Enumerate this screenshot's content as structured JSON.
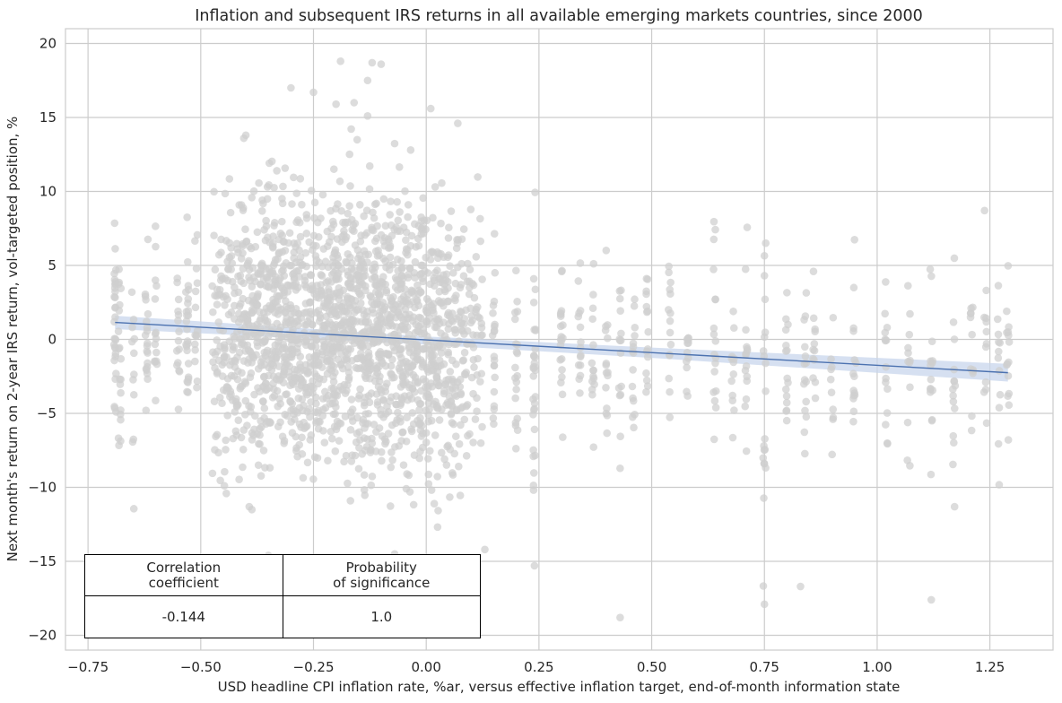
{
  "chart_data": {
    "type": "scatter",
    "title": "Inflation and subsequent IRS returns in all available emerging markets countries, since 2000",
    "xlabel": "USD headline CPI inflation rate, %ar, versus effective inflation target, end-of-month information state",
    "ylabel": "Next month's return on 2-year IRS return, vol-targeted position, %",
    "xlim": [
      -0.8,
      1.39
    ],
    "ylim": [
      -21,
      21
    ],
    "x_ticks": [
      -0.75,
      -0.5,
      -0.25,
      0.0,
      0.25,
      0.5,
      0.75,
      1.0,
      1.25
    ],
    "x_tick_labels": [
      "−0.75",
      "−0.50",
      "−0.25",
      "0.00",
      "0.25",
      "0.50",
      "0.75",
      "1.00",
      "1.25"
    ],
    "y_ticks": [
      -20,
      -15,
      -10,
      -5,
      0,
      5,
      10,
      15,
      20
    ],
    "y_tick_labels": [
      "−20",
      "−15",
      "−10",
      "−5",
      "0",
      "5",
      "10",
      "15",
      "20"
    ],
    "grid": true,
    "regression_line": {
      "x": [
        -0.69,
        1.29
      ],
      "y": [
        1.15,
        -2.25
      ]
    },
    "confidence_band": {
      "x": [
        -0.69,
        0.0,
        0.5,
        1.29
      ],
      "lower": [
        0.7,
        -0.35,
        -1.25,
        -2.85
      ],
      "upper": [
        1.6,
        0.2,
        -0.55,
        -1.65
      ]
    },
    "colors": {
      "points": "#cfcfcf",
      "line": "#4c72b0",
      "band": "#c8d6ec",
      "grid": "#cccccc",
      "axis": "#cccccc"
    },
    "points_approximate": true,
    "point_clusters": [
      {
        "x": -0.69,
        "center": 0.5,
        "spread": 3.2,
        "n": 30
      },
      {
        "x": -0.68,
        "center": -1.5,
        "spread": 3.5,
        "n": 20
      },
      {
        "x": -0.65,
        "center": -2.5,
        "spread": 4.0,
        "n": 12
      },
      {
        "x": -0.62,
        "center": 1.0,
        "spread": 2.5,
        "n": 20
      },
      {
        "x": -0.6,
        "center": 0.0,
        "spread": 3.5,
        "n": 15
      },
      {
        "x": -0.55,
        "center": 0.5,
        "spread": 2.5,
        "n": 15
      },
      {
        "x": -0.53,
        "center": 0.0,
        "spread": 3.5,
        "n": 25
      },
      {
        "x": -0.51,
        "center": 2.0,
        "spread": 3.0,
        "n": 15
      },
      {
        "x": -0.46,
        "center": 0.5,
        "spread": 4.5,
        "n": 55
      },
      {
        "x": -0.43,
        "center": 0.5,
        "spread": 4.8,
        "n": 70
      },
      {
        "x": -0.4,
        "center": 0.8,
        "spread": 4.8,
        "n": 90
      },
      {
        "x": -0.37,
        "center": 0.5,
        "spread": 4.5,
        "n": 100
      },
      {
        "x": -0.34,
        "center": 0.8,
        "spread": 4.5,
        "n": 110
      },
      {
        "x": -0.31,
        "center": 1.0,
        "spread": 4.2,
        "n": 110
      },
      {
        "x": -0.28,
        "center": 0.5,
        "spread": 4.2,
        "n": 110
      },
      {
        "x": -0.25,
        "center": 0.5,
        "spread": 4.2,
        "n": 100
      },
      {
        "x": -0.22,
        "center": 1.0,
        "spread": 4.5,
        "n": 110
      },
      {
        "x": -0.19,
        "center": 1.2,
        "spread": 4.5,
        "n": 120
      },
      {
        "x": -0.16,
        "center": 1.0,
        "spread": 4.5,
        "n": 120
      },
      {
        "x": -0.13,
        "center": 0.8,
        "spread": 4.5,
        "n": 120
      },
      {
        "x": -0.1,
        "center": 0.5,
        "spread": 4.5,
        "n": 120
      },
      {
        "x": -0.07,
        "center": 0.5,
        "spread": 4.5,
        "n": 110
      },
      {
        "x": -0.04,
        "center": 0.0,
        "spread": 4.5,
        "n": 110
      },
      {
        "x": -0.01,
        "center": 0.0,
        "spread": 4.8,
        "n": 110
      },
      {
        "x": 0.02,
        "center": -0.5,
        "spread": 4.8,
        "n": 100
      },
      {
        "x": 0.05,
        "center": -0.5,
        "spread": 4.5,
        "n": 80
      },
      {
        "x": 0.08,
        "center": 0.0,
        "spread": 4.0,
        "n": 60
      },
      {
        "x": 0.11,
        "center": 0.0,
        "spread": 4.0,
        "n": 45
      },
      {
        "x": 0.15,
        "center": -0.5,
        "spread": 3.0,
        "n": 20
      },
      {
        "x": 0.2,
        "center": -1.0,
        "spread": 3.0,
        "n": 20
      },
      {
        "x": 0.24,
        "center": -3.0,
        "spread": 4.5,
        "n": 30
      },
      {
        "x": 0.3,
        "center": -0.5,
        "spread": 3.5,
        "n": 20
      },
      {
        "x": 0.34,
        "center": 0.0,
        "spread": 2.5,
        "n": 15
      },
      {
        "x": 0.37,
        "center": -1.0,
        "spread": 3.0,
        "n": 15
      },
      {
        "x": 0.4,
        "center": -0.5,
        "spread": 3.0,
        "n": 15
      },
      {
        "x": 0.43,
        "center": -1.0,
        "spread": 3.5,
        "n": 15
      },
      {
        "x": 0.46,
        "center": -1.0,
        "spread": 3.0,
        "n": 15
      },
      {
        "x": 0.49,
        "center": 1.0,
        "spread": 3.0,
        "n": 15
      },
      {
        "x": 0.54,
        "center": 0.5,
        "spread": 3.0,
        "n": 15
      },
      {
        "x": 0.58,
        "center": 0.0,
        "spread": 3.0,
        "n": 12
      },
      {
        "x": 0.64,
        "center": -1.0,
        "spread": 4.0,
        "n": 18
      },
      {
        "x": 0.68,
        "center": -1.5,
        "spread": 3.5,
        "n": 12
      },
      {
        "x": 0.71,
        "center": -1.5,
        "spread": 4.0,
        "n": 15
      },
      {
        "x": 0.75,
        "center": -4.0,
        "spread": 5.5,
        "n": 20
      },
      {
        "x": 0.8,
        "center": -2.0,
        "spread": 3.5,
        "n": 15
      },
      {
        "x": 0.84,
        "center": -2.5,
        "spread": 4.5,
        "n": 15
      },
      {
        "x": 0.86,
        "center": -0.5,
        "spread": 3.5,
        "n": 12
      },
      {
        "x": 0.9,
        "center": -2.0,
        "spread": 3.0,
        "n": 10
      },
      {
        "x": 0.95,
        "center": -2.0,
        "spread": 3.5,
        "n": 15
      },
      {
        "x": 1.02,
        "center": -2.5,
        "spread": 3.0,
        "n": 15
      },
      {
        "x": 1.07,
        "center": -2.0,
        "spread": 3.0,
        "n": 12
      },
      {
        "x": 1.12,
        "center": -2.0,
        "spread": 4.0,
        "n": 15
      },
      {
        "x": 1.17,
        "center": -2.5,
        "spread": 4.0,
        "n": 15
      },
      {
        "x": 1.21,
        "center": -2.0,
        "spread": 3.0,
        "n": 12
      },
      {
        "x": 1.24,
        "center": 0.0,
        "spread": 3.5,
        "n": 12
      },
      {
        "x": 1.27,
        "center": -2.5,
        "spread": 3.5,
        "n": 12
      },
      {
        "x": 1.29,
        "center": -1.5,
        "spread": 3.0,
        "n": 15
      }
    ],
    "outlier_points": [
      {
        "x": -0.3,
        "y": 17.0
      },
      {
        "x": -0.25,
        "y": 16.7
      },
      {
        "x": -0.19,
        "y": 18.8
      },
      {
        "x": -0.12,
        "y": 18.7
      },
      {
        "x": -0.1,
        "y": 18.6
      },
      {
        "x": -0.13,
        "y": 17.5
      },
      {
        "x": -0.13,
        "y": 15.1
      },
      {
        "x": -0.16,
        "y": 16.0
      },
      {
        "x": -0.2,
        "y": 15.9
      },
      {
        "x": 0.01,
        "y": 15.6
      },
      {
        "x": 0.07,
        "y": 14.6
      },
      {
        "x": -0.4,
        "y": 13.8
      },
      {
        "x": -0.35,
        "y": -14.6
      },
      {
        "x": -0.07,
        "y": -14.5
      },
      {
        "x": 0.43,
        "y": -18.8
      },
      {
        "x": 0.75,
        "y": -17.9
      },
      {
        "x": 0.83,
        "y": -16.7
      },
      {
        "x": 1.12,
        "y": -17.6
      },
      {
        "x": 0.24,
        "y": -15.3
      },
      {
        "x": 0.13,
        "y": -14.2
      }
    ]
  },
  "stats_table": {
    "headers": [
      {
        "line1": "Correlation",
        "line2": "coefficient"
      },
      {
        "line1": "Probability",
        "line2": "of significance"
      }
    ],
    "values": [
      "-0.144",
      "1.0"
    ]
  }
}
